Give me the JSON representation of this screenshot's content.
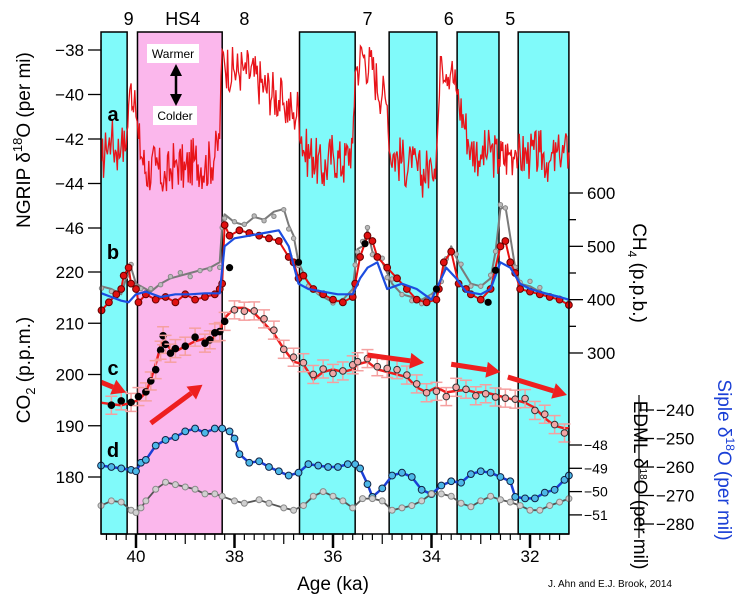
{
  "chart_data": {
    "type": "line",
    "title": "",
    "credit": "J. Ahn and E.J. Brook, 2014",
    "xlabel": "Age (ka)",
    "xlim": [
      40.71,
      31.21
    ],
    "x_reversed": true,
    "xticks": [
      40,
      38,
      36,
      34,
      32
    ],
    "x_minor_step": 0.2,
    "colors": {
      "stadial_band": "#80fafa",
      "hs4_band": "#fbb7ec",
      "ngrip": "#e8141a",
      "ch4_red": "#e81010",
      "ch4_grey": "#7a7a7a",
      "ch4_blue": "#1c4de0",
      "co2": "#ee1f1f",
      "co2_err": "#f5a0a0",
      "edml": "#555555",
      "edml_pts": "#a8a8a8",
      "siple": "#1a3fd6",
      "siple_pts": "#4cb8e8",
      "hs4_label": "#ff00cc",
      "siple_axis": "#1a3fd6"
    },
    "event_labels": [
      {
        "label": "9",
        "age": 40.15
      },
      {
        "label": "HS4",
        "age": 39.05,
        "color": "#ff00cc"
      },
      {
        "label": "8",
        "age": 37.8
      },
      {
        "label": "7",
        "age": 35.3
      },
      {
        "label": "6",
        "age": 33.65
      },
      {
        "label": "5",
        "age": 32.4
      }
    ],
    "bands": [
      {
        "type": "stadial",
        "from": 40.71,
        "to": 40.18
      },
      {
        "type": "HS4",
        "from": 39.97,
        "to": 38.25
      },
      {
        "type": "stadial",
        "from": 36.68,
        "to": 35.55
      },
      {
        "type": "stadial",
        "from": 34.86,
        "to": 33.89
      },
      {
        "type": "stadial",
        "from": 33.48,
        "to": 32.63
      },
      {
        "type": "stadial",
        "from": 32.24,
        "to": 31.21
      }
    ],
    "annotations": {
      "warmer": "Warmer",
      "colder": "Colder",
      "panels": [
        "a",
        "b",
        "c",
        "d"
      ]
    },
    "axes": {
      "ngrip": {
        "label": "NGRIP δ18O (per mi)",
        "label_main": "NGRIP δ",
        "label_sup": "18",
        "label_tail": "O (per mi)",
        "side": "left",
        "ticks": [
          -38,
          -40,
          -42,
          -44,
          -46
        ],
        "range": [
          -46,
          -38
        ]
      },
      "co2": {
        "label": "CO2 (p.p.m.)",
        "label_main": "CO",
        "label_sub": "2",
        "label_tail": " (p.p.m.)",
        "side": "left",
        "ticks": [
          220,
          210,
          200,
          190,
          180
        ],
        "range": [
          180,
          220
        ]
      },
      "ch4": {
        "label": "CH4 (p.p.b.)",
        "label_main": "CH",
        "label_sub": "4",
        "label_tail": " (p.p.b.)",
        "side": "right",
        "ticks": [
          600,
          500,
          400,
          300
        ],
        "range": [
          300,
          600
        ]
      },
      "edml": {
        "label": "EDML δ18O (per mil)",
        "label_main": "EDML δ",
        "label_sup": "18",
        "label_tail": "O (per mil)",
        "side": "right",
        "ticks": [
          -48,
          -49,
          -50,
          -51
        ],
        "range": [
          -51,
          -48
        ]
      },
      "siple": {
        "label": "Siple δ18O (per mil)",
        "label_main": "Siple δ",
        "label_sup": "18",
        "label_tail": "O (per mil)",
        "side": "right",
        "ticks": [
          -240,
          -250,
          -260,
          -270,
          -280
        ],
        "range": [
          -280,
          -240
        ]
      }
    },
    "series": [
      {
        "name": "NGRIP δ18O",
        "panel": "a",
        "axis": "ngrip",
        "x": [
          40.7,
          40.6,
          40.5,
          40.4,
          40.3,
          40.2,
          40.15,
          40.1,
          40.05,
          40.0,
          39.95,
          39.8,
          39.6,
          39.4,
          39.2,
          39.0,
          38.8,
          38.6,
          38.4,
          38.3,
          38.25,
          38.2,
          38.0,
          37.8,
          37.6,
          37.4,
          37.2,
          37.0,
          36.8,
          36.7,
          36.6,
          36.4,
          36.2,
          36.0,
          35.8,
          35.6,
          35.55,
          35.4,
          35.2,
          35.0,
          34.9,
          34.86,
          34.6,
          34.4,
          34.2,
          34.0,
          33.9,
          33.8,
          33.6,
          33.5,
          33.48,
          33.2,
          33.0,
          32.8,
          32.63,
          32.4,
          32.3,
          32.24,
          32.0,
          31.8,
          31.6,
          31.4,
          31.21
        ],
        "y": [
          -43.0,
          -42.5,
          -42.0,
          -42.6,
          -42.3,
          -42.4,
          -40.5,
          -39.5,
          -40.8,
          -41.0,
          -42.0,
          -43.5,
          -43.2,
          -43.8,
          -43.0,
          -43.4,
          -42.9,
          -43.3,
          -42.8,
          -42.0,
          -38.0,
          -38.6,
          -39.0,
          -38.8,
          -39.2,
          -39.6,
          -40.0,
          -40.4,
          -40.8,
          -40.6,
          -42.5,
          -42.8,
          -43.5,
          -42.6,
          -43.2,
          -42.2,
          -39.0,
          -38.2,
          -38.9,
          -40.0,
          -40.5,
          -42.5,
          -43.0,
          -43.3,
          -43.6,
          -43.2,
          -42.6,
          -38.3,
          -38.9,
          -39.8,
          -40.0,
          -42.4,
          -42.7,
          -42.6,
          -42.9,
          -42.7,
          -42.5,
          -42.7,
          -42.8,
          -42.6,
          -43.0,
          -42.8,
          -42.6
        ]
      },
      {
        "name": "CH4 (EDML grey)",
        "panel": "b",
        "axis": "ch4",
        "x": [
          40.7,
          40.5,
          40.3,
          40.2,
          40.1,
          40.0,
          39.9,
          39.7,
          39.5,
          39.3,
          39.1,
          38.9,
          38.7,
          38.5,
          38.3,
          38.25,
          38.2,
          38.0,
          37.8,
          37.6,
          37.4,
          37.2,
          37.0,
          36.9,
          36.8,
          36.7,
          36.5,
          36.3,
          36.0,
          35.8,
          35.6,
          35.55,
          35.5,
          35.4,
          35.3,
          35.2,
          35.0,
          34.9,
          34.8,
          34.6,
          34.4,
          34.2,
          34.0,
          33.9,
          33.8,
          33.7,
          33.6,
          33.5,
          33.4,
          33.2,
          33.0,
          32.8,
          32.7,
          32.6,
          32.5,
          32.3,
          32.2,
          32.0,
          31.8,
          31.6,
          31.4,
          31.21
        ],
        "y": [
          425,
          420,
          410,
          440,
          460,
          430,
          425,
          415,
          430,
          440,
          445,
          450,
          455,
          460,
          470,
          540,
          560,
          545,
          540,
          555,
          550,
          565,
          570,
          540,
          520,
          470,
          430,
          410,
          395,
          400,
          420,
          460,
          495,
          500,
          530,
          490,
          470,
          450,
          430,
          410,
          405,
          400,
          410,
          420,
          440,
          470,
          500,
          480,
          460,
          430,
          425,
          440,
          490,
          570,
          575,
          460,
          430,
          425,
          415,
          410,
          405,
          400
        ]
      },
      {
        "name": "CH4 (red)",
        "panel": "b",
        "axis": "ch4",
        "x": [
          40.7,
          40.55,
          40.4,
          40.3,
          40.25,
          40.15,
          40.1,
          40.0,
          39.95,
          39.8,
          39.6,
          39.4,
          39.2,
          39.0,
          38.8,
          38.6,
          38.4,
          38.3,
          38.25,
          38.2,
          38.1,
          37.9,
          37.7,
          37.5,
          37.3,
          37.1,
          36.9,
          36.8,
          36.7,
          36.6,
          36.4,
          36.2,
          36.0,
          35.8,
          35.6,
          35.55,
          35.45,
          35.3,
          35.2,
          35.1,
          34.9,
          34.7,
          34.5,
          34.3,
          34.1,
          33.9,
          33.85,
          33.75,
          33.6,
          33.45,
          33.3,
          33.2,
          33.0,
          32.8,
          32.6,
          32.5,
          32.4,
          32.3,
          32.2,
          32.0,
          31.8,
          31.6,
          31.4,
          31.21
        ],
        "y": [
          380,
          395,
          410,
          420,
          445,
          460,
          430,
          420,
          395,
          410,
          400,
          405,
          395,
          410,
          400,
          405,
          410,
          420,
          430,
          540,
          520,
          530,
          525,
          520,
          515,
          510,
          480,
          470,
          440,
          445,
          420,
          410,
          400,
          395,
          405,
          430,
          480,
          520,
          510,
          480,
          460,
          440,
          420,
          400,
          395,
          400,
          420,
          470,
          490,
          430,
          420,
          410,
          400,
          420,
          500,
          510,
          470,
          450,
          420,
          415,
          410,
          405,
          400,
          390
        ]
      },
      {
        "name": "CH4 (blue)",
        "panel": "b",
        "axis": "ch4",
        "x": [
          40.7,
          40.5,
          40.3,
          40.15,
          40.0,
          39.8,
          39.5,
          39.2,
          38.9,
          38.6,
          38.3,
          38.2,
          38.0,
          37.7,
          37.4,
          37.1,
          36.9,
          36.7,
          36.5,
          36.2,
          35.9,
          35.6,
          35.45,
          35.3,
          35.1,
          34.9,
          34.6,
          34.3,
          34.0,
          33.85,
          33.7,
          33.5,
          33.3,
          33.0,
          32.8,
          32.6,
          32.4,
          32.2,
          32.0,
          31.7,
          31.4,
          31.21
        ],
        "y": [
          412,
          405,
          398,
          395,
          410,
          415,
          405,
          410,
          410,
          412,
          412,
          500,
          515,
          520,
          525,
          530,
          500,
          430,
          420,
          415,
          410,
          410,
          440,
          460,
          470,
          420,
          430,
          420,
          400,
          430,
          460,
          440,
          415,
          410,
          420,
          470,
          460,
          430,
          420,
          412,
          405,
          400
        ]
      },
      {
        "name": "CO2",
        "panel": "c",
        "axis": "co2",
        "x": [
          40.71,
          40.5,
          40.3,
          40.1,
          39.95,
          39.8,
          39.7,
          39.6,
          39.5,
          39.45,
          39.4,
          39.3,
          39.2,
          39.0,
          38.8,
          38.6,
          38.5,
          38.4,
          38.3,
          38.2,
          38.0,
          37.8,
          37.6,
          37.4,
          37.2,
          37.0,
          36.8,
          36.6,
          36.4,
          36.2,
          36.0,
          35.8,
          35.6,
          35.5,
          35.3,
          35.1,
          34.9,
          34.7,
          34.5,
          34.3,
          34.1,
          33.9,
          33.7,
          33.5,
          33.3,
          33.1,
          32.9,
          32.7,
          32.5,
          32.3,
          32.1,
          31.9,
          31.7,
          31.5,
          31.3,
          31.21
        ],
        "y": [
          194.5,
          194.2,
          194.0,
          194.5,
          195.0,
          196.5,
          199,
          202,
          205.5,
          206.5,
          206.0,
          205.0,
          204.5,
          205.5,
          206.5,
          207,
          206.5,
          207.5,
          208.5,
          211,
          213,
          213,
          212,
          210,
          208,
          205,
          202.5,
          202,
          199,
          200.5,
          201,
          200.5,
          201,
          202,
          202.5,
          201,
          200.5,
          200,
          199.5,
          197.5,
          196.5,
          197.5,
          196.5,
          196.8,
          197,
          196.5,
          196.5,
          196,
          195.5,
          195,
          194.5,
          193.5,
          191.5,
          190,
          189.5,
          189.5
        ]
      },
      {
        "name": "CO2 trend arrows",
        "panel": "c",
        "axis": "co2",
        "type": "arrows",
        "segments": [
          {
            "x": [
              40.71,
              40.2
            ],
            "y": [
              198.5,
              196.5
            ]
          },
          {
            "x": [
              39.7,
              38.65
            ],
            "y": [
              190.5,
              198.0
            ]
          },
          {
            "x": [
              35.3,
              34.15
            ],
            "y": [
              203.8,
              202.3
            ]
          },
          {
            "x": [
              33.6,
              32.6
            ],
            "y": [
              202.0,
              200.5
            ]
          },
          {
            "x": [
              32.45,
              31.25
            ],
            "y": [
              199.5,
              196.0
            ]
          },
          {
            "x": [
              36.55,
              35.5
            ],
            "y": [
              211.0,
              210.3
            ]
          }
        ]
      },
      {
        "name": "Siple δ18O",
        "panel": "d",
        "axis": "siple",
        "x": [
          40.71,
          40.5,
          40.3,
          40.1,
          40.0,
          39.9,
          39.8,
          39.6,
          39.4,
          39.2,
          39.0,
          38.8,
          38.6,
          38.4,
          38.25,
          38.1,
          38.0,
          37.9,
          37.7,
          37.5,
          37.3,
          37.1,
          36.9,
          36.7,
          36.5,
          36.3,
          36.1,
          35.9,
          35.7,
          35.55,
          35.45,
          35.3,
          35.2,
          35.0,
          34.8,
          34.6,
          34.4,
          34.2,
          34.0,
          33.8,
          33.6,
          33.4,
          33.2,
          33.0,
          32.8,
          32.6,
          32.4,
          32.3,
          32.1,
          31.9,
          31.7,
          31.5,
          31.3,
          31.21
        ],
        "y": [
          -259.5,
          -260.0,
          -260.5,
          -261.0,
          -261.5,
          -258.5,
          -257.5,
          -252.5,
          -250.5,
          -249.5,
          -247.5,
          -246.5,
          -248.0,
          -246.5,
          -246.5,
          -247.5,
          -250.0,
          -255.5,
          -258.5,
          -258.0,
          -260.0,
          -261.5,
          -263.0,
          -262.0,
          -259.0,
          -259.5,
          -260.0,
          -260.0,
          -259.0,
          -259.0,
          -260.5,
          -266.0,
          -270.5,
          -267.5,
          -263.0,
          -262.0,
          -263.5,
          -268.0,
          -269.5,
          -266.5,
          -265.0,
          -265.5,
          -262.5,
          -261.5,
          -262.0,
          -263.5,
          -265.0,
          -270.5,
          -271.0,
          -271.0,
          -269.0,
          -268.0,
          -264.5,
          -263.0
        ]
      },
      {
        "name": "EDML δ18O",
        "panel": "d",
        "axis": "edml",
        "x": [
          40.71,
          40.5,
          40.3,
          40.1,
          40.0,
          39.9,
          39.8,
          39.6,
          39.4,
          39.2,
          39.0,
          38.8,
          38.6,
          38.4,
          38.25,
          38.0,
          37.8,
          37.5,
          37.3,
          37.0,
          36.8,
          36.6,
          36.4,
          36.2,
          36.0,
          35.8,
          35.6,
          35.4,
          35.2,
          35.0,
          34.8,
          34.6,
          34.4,
          34.2,
          34.0,
          33.8,
          33.6,
          33.4,
          33.2,
          33.0,
          32.8,
          32.6,
          32.4,
          32.2,
          32.0,
          31.8,
          31.6,
          31.4,
          31.21
        ],
        "y": [
          -50.6,
          -50.4,
          -50.45,
          -50.8,
          -50.9,
          -50.7,
          -50.4,
          -49.9,
          -49.6,
          -49.7,
          -49.8,
          -49.9,
          -50.1,
          -50.1,
          -50.2,
          -50.4,
          -50.5,
          -50.35,
          -50.5,
          -50.7,
          -50.8,
          -50.6,
          -50.2,
          -50.0,
          -50.2,
          -50.4,
          -50.7,
          -50.3,
          -50.3,
          -50.4,
          -50.8,
          -50.7,
          -50.6,
          -50.4,
          -50.1,
          -50.1,
          -50.2,
          -50.5,
          -50.65,
          -50.4,
          -50.2,
          -50.35,
          -50.45,
          -50.6,
          -50.8,
          -50.8,
          -50.6,
          -50.45,
          -50.3
        ]
      }
    ]
  }
}
